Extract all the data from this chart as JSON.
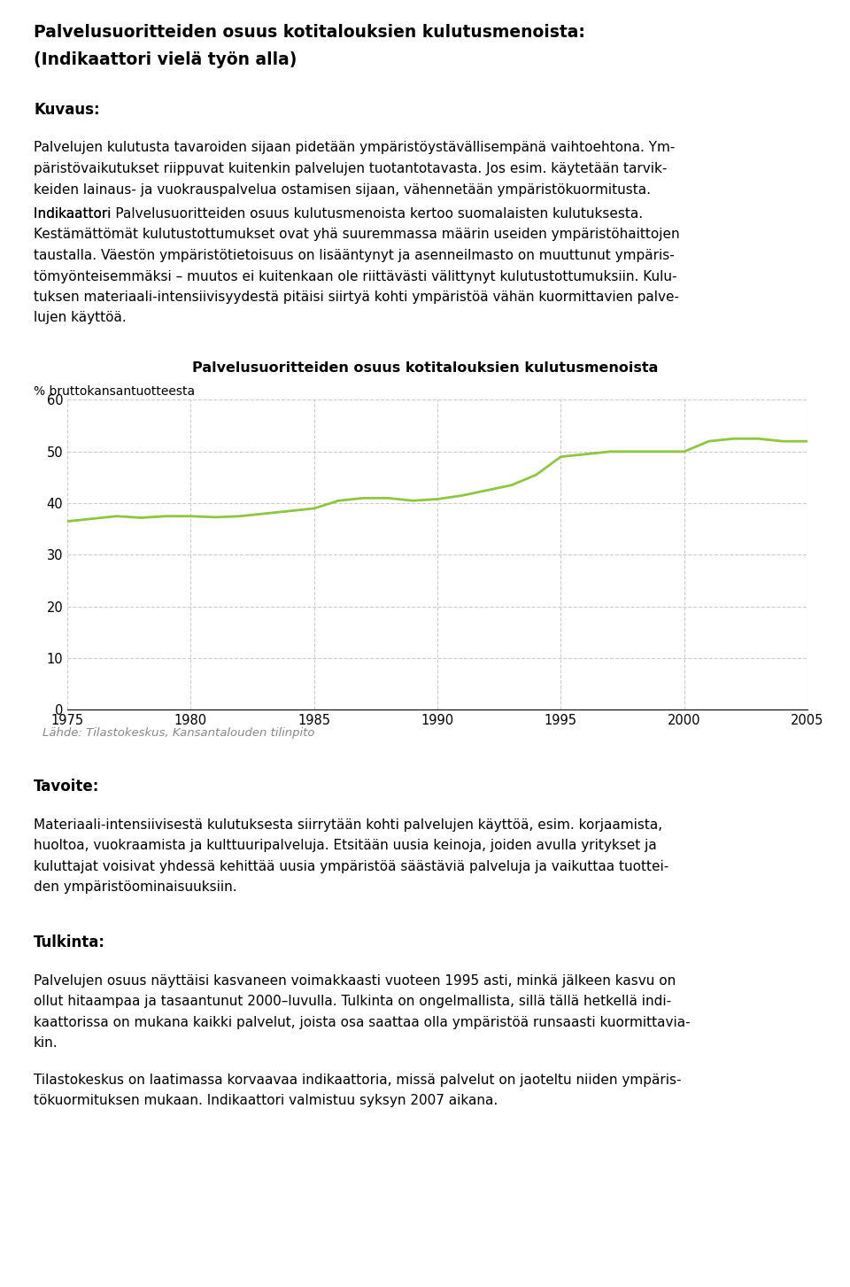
{
  "title_line1": "Palvelusuoritteiden osuus kotitalouksien kulutusmenoista:",
  "title_line2": "(Indikaattori vielä työn alla)",
  "section_kuvaus": "Kuvaus:",
  "kuvaus_line1": "Palvelujen kulutusta tavaroiden sijaan pidetään ympäristöystävällisempänä vaihtoehtona. Ym-",
  "kuvaus_line2": "päristövaikutukset riippuvat kuitenkin palvelujen tuotantotavasta. Jos esim. käytetään tarvik-",
  "kuvaus_line3": "keiden lainaus- ja vuokrauspalvelua ostamisen sijaan, vähennetään ympäristökuormitusta.",
  "kuvaus_line4a": "Indikaattori ",
  "kuvaus_line4b": "Palvelusuoritteiden osuus kulutusmenoista",
  "kuvaus_line4c": " kertoo suomalaisten kulutuksesta.",
  "kuvaus_line5": "Kestämättömät kulutustottumukset ovat yhä suuremmassa määrin useiden ympäristöhaittojen",
  "kuvaus_line6": "taustalla. Väestön ympäristötietoisuus on lisääntynyt ja asenneilmasto on muuttunut ympäris-",
  "kuvaus_line7": "tömyönteisemmäksi – muutos ei kuitenkaan ole riittävästi välittynyt kulutustottumuksiin. Kulu-",
  "kuvaus_line8": "tuksen materiaali-intensiivisyydestä pitäisi siirtyä kohti ympäristöä vähän kuormittavien palve-",
  "kuvaus_line9": "lujen käyttöä.",
  "chart_title": "Palvelusuoritteiden osuus kotitalouksien kulutusmenoista",
  "ylabel": "% bruttokansantuotteesta",
  "source": "Lähde: Tilastokeskus, Kansantalouden tilinpito",
  "section_tavoite": "Tavoite:",
  "tavoite_line1": "Materiaali-intensiivisestä kulutuksesta siirrytään kohti palvelujen käyttöä, esim. korjaamista,",
  "tavoite_line2": "huoltoa, vuokraamista ja kulttuuripalveluja. Etsitään uusia keinoja, joiden avulla yritykset ja",
  "tavoite_line3": "kuluttajat voisivat yhdessä kehittää uusia ympäristöä säästäviä palveluja ja vaikuttaa tuottei-",
  "tavoite_line4": "den ympäristöominaisuuksiin.",
  "section_tulkinta": "Tulkinta:",
  "tulkinta_line1": "Palvelujen osuus näyttäisi kasvaneen voimakkaasti vuoteen 1995 asti, minkä jälkeen kasvu on",
  "tulkinta_line2": "ollut hitaampaa ja tasaantunut 2000–luvulla. Tulkinta on ongelmallista, sillä tällä hetkellä indi-",
  "tulkinta_line3": "kaattorissa on mukana kaikki palvelut, joista osa saattaa olla ympäristöä runsaasti kuormittavia-",
  "tulkinta_line4": "kin.",
  "tulkinta_line5": "Tilastokeskus on laatimassa korvaavaa indikaattoria, missä palvelut on jaoteltu niiden ympäris-",
  "tulkinta_line6": "tökuormituksen mukaan. Indikaattori valmistuu syksyn 2007 aikana.",
  "years": [
    1975,
    1976,
    1977,
    1978,
    1979,
    1980,
    1981,
    1982,
    1983,
    1984,
    1985,
    1986,
    1987,
    1988,
    1989,
    1990,
    1991,
    1992,
    1993,
    1994,
    1995,
    1996,
    1997,
    1998,
    1999,
    2000,
    2001,
    2002,
    2003,
    2004,
    2005
  ],
  "values": [
    36.5,
    37.0,
    37.5,
    37.2,
    37.5,
    37.5,
    37.3,
    37.5,
    38.0,
    38.5,
    39.0,
    40.5,
    41.0,
    41.0,
    40.5,
    40.8,
    41.5,
    42.5,
    43.5,
    45.5,
    49.0,
    49.5,
    50.0,
    50.0,
    50.0,
    50.0,
    52.0,
    52.5,
    52.5,
    52.0,
    52.0
  ],
  "line_color": "#8dc63f",
  "ylim": [
    0,
    60
  ],
  "yticks": [
    0,
    10,
    20,
    30,
    40,
    50,
    60
  ],
  "xticks": [
    1975,
    1980,
    1985,
    1990,
    1995,
    2000,
    2005
  ],
  "grid_color": "#cccccc",
  "background_color": "#ffffff",
  "font_color": "#000000"
}
